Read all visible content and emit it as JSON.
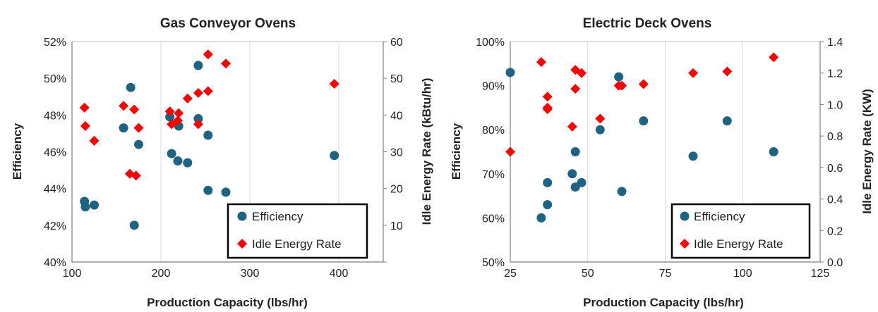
{
  "chart_data": [
    {
      "type": "scatter",
      "title": "Gas Conveyor Ovens",
      "xlabel": "Production Capacity (lbs/hr)",
      "ylabel": "Efficiency",
      "y2label": "Idle Energy Rate (kBtu/hr)",
      "xlim": [
        100,
        450
      ],
      "ylim": [
        0.4,
        0.52
      ],
      "y2lim": [
        0,
        60
      ],
      "x_ticks": [
        "100",
        "200",
        "300",
        "400"
      ],
      "y_ticks": [
        "40%",
        "42%",
        "44%",
        "46%",
        "48%",
        "50%",
        "52%"
      ],
      "y2_ticks": [
        "10",
        "20",
        "30",
        "40",
        "50",
        "60"
      ],
      "grid": "vertical-major",
      "legend": "bottom-right",
      "series": [
        {
          "name": "Efficiency",
          "axis": "left",
          "color": "#1f6383",
          "marker": "circle",
          "points": [
            {
              "x": 114,
              "y": 0.433
            },
            {
              "x": 115,
              "y": 0.43
            },
            {
              "x": 125,
              "y": 0.431
            },
            {
              "x": 158,
              "y": 0.473
            },
            {
              "x": 166,
              "y": 0.495
            },
            {
              "x": 170,
              "y": 0.42
            },
            {
              "x": 175,
              "y": 0.464
            },
            {
              "x": 210,
              "y": 0.479
            },
            {
              "x": 212,
              "y": 0.459
            },
            {
              "x": 219,
              "y": 0.455
            },
            {
              "x": 220,
              "y": 0.474
            },
            {
              "x": 230,
              "y": 0.454
            },
            {
              "x": 242,
              "y": 0.507
            },
            {
              "x": 242,
              "y": 0.478
            },
            {
              "x": 253,
              "y": 0.469
            },
            {
              "x": 253,
              "y": 0.439
            },
            {
              "x": 273,
              "y": 0.438
            },
            {
              "x": 395,
              "y": 0.458
            }
          ]
        },
        {
          "name": "Idle Energy Rate",
          "axis": "right",
          "color": "#ff0000",
          "marker": "diamond",
          "points": [
            {
              "x": 114,
              "y": 42
            },
            {
              "x": 115,
              "y": 37
            },
            {
              "x": 125,
              "y": 33
            },
            {
              "x": 158,
              "y": 42.5
            },
            {
              "x": 165,
              "y": 24
            },
            {
              "x": 170,
              "y": 41.5
            },
            {
              "x": 172,
              "y": 23.5
            },
            {
              "x": 175,
              "y": 36.5
            },
            {
              "x": 210,
              "y": 41
            },
            {
              "x": 212,
              "y": 37.5
            },
            {
              "x": 219,
              "y": 38.5
            },
            {
              "x": 220,
              "y": 40.5
            },
            {
              "x": 230,
              "y": 44.5
            },
            {
              "x": 242,
              "y": 46
            },
            {
              "x": 242,
              "y": 37.5
            },
            {
              "x": 253,
              "y": 46.5
            },
            {
              "x": 253,
              "y": 56.5
            },
            {
              "x": 273,
              "y": 54
            },
            {
              "x": 395,
              "y": 48.5
            }
          ]
        }
      ]
    },
    {
      "type": "scatter",
      "title": "Electric Deck Ovens",
      "xlabel": "Production Capacity (lbs/hr)",
      "ylabel": "Efficiency",
      "y2label": "Idle Energy Rate (KW)",
      "xlim": [
        25,
        125
      ],
      "ylim": [
        0.5,
        1.0
      ],
      "y2lim": [
        0,
        1.4
      ],
      "x_ticks": [
        "25",
        "50",
        "75",
        "100",
        "125"
      ],
      "y_ticks": [
        "50%",
        "60%",
        "70%",
        "80%",
        "90%",
        "100%"
      ],
      "y2_ticks": [
        "0.0",
        "0.2",
        "0.4",
        "0.6",
        "0.8",
        "1.0",
        "1.2",
        "1.4"
      ],
      "grid": "vertical-major",
      "legend": "bottom-right",
      "series": [
        {
          "name": "Efficiency",
          "axis": "left",
          "color": "#1f6383",
          "marker": "circle",
          "points": [
            {
              "x": 25,
              "y": 0.93
            },
            {
              "x": 35,
              "y": 0.6
            },
            {
              "x": 37,
              "y": 0.68
            },
            {
              "x": 37,
              "y": 0.63
            },
            {
              "x": 45,
              "y": 0.7
            },
            {
              "x": 46,
              "y": 0.75
            },
            {
              "x": 46,
              "y": 0.67
            },
            {
              "x": 48,
              "y": 0.68
            },
            {
              "x": 54,
              "y": 0.8
            },
            {
              "x": 60,
              "y": 0.92
            },
            {
              "x": 61,
              "y": 0.66
            },
            {
              "x": 68,
              "y": 0.82
            },
            {
              "x": 84,
              "y": 0.74
            },
            {
              "x": 95,
              "y": 0.82
            },
            {
              "x": 110,
              "y": 0.75
            }
          ]
        },
        {
          "name": "Idle Energy Rate",
          "axis": "right",
          "color": "#ff0000",
          "marker": "diamond",
          "points": [
            {
              "x": 25,
              "y": 0.7
            },
            {
              "x": 35,
              "y": 1.27
            },
            {
              "x": 37,
              "y": 1.05
            },
            {
              "x": 37,
              "y": 0.98
            },
            {
              "x": 37,
              "y": 0.97
            },
            {
              "x": 45,
              "y": 0.86
            },
            {
              "x": 46,
              "y": 1.22
            },
            {
              "x": 46,
              "y": 1.1
            },
            {
              "x": 48,
              "y": 1.2
            },
            {
              "x": 54,
              "y": 0.91
            },
            {
              "x": 60,
              "y": 1.12
            },
            {
              "x": 61,
              "y": 1.12
            },
            {
              "x": 68,
              "y": 1.13
            },
            {
              "x": 84,
              "y": 1.2
            },
            {
              "x": 95,
              "y": 1.21
            },
            {
              "x": 110,
              "y": 1.3
            }
          ]
        }
      ]
    }
  ]
}
